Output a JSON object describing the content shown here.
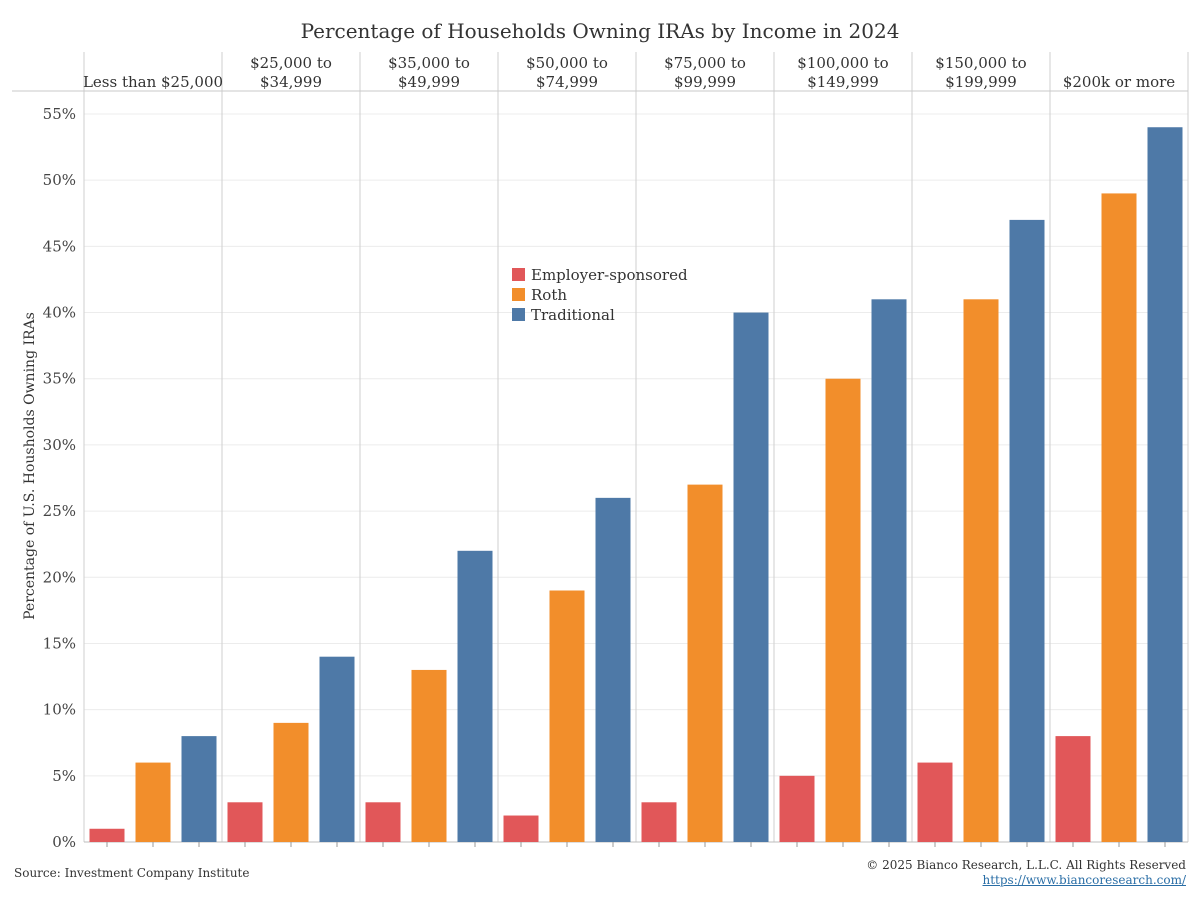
{
  "chart_data": {
    "type": "bar",
    "title": "Percentage of Households Owning IRAs by Income in 2024",
    "ylabel": "Percentage of U.S. Housholds Owning IRAs",
    "ylim": [
      0,
      55
    ],
    "y_ticks": [
      "0%",
      "5%",
      "10%",
      "15%",
      "20%",
      "25%",
      "30%",
      "35%",
      "40%",
      "45%",
      "50%",
      "55%"
    ],
    "grid": true,
    "legend_position": "center-left",
    "categories": [
      [
        "Less than $25,000"
      ],
      [
        "$25,000 to",
        "$34,999"
      ],
      [
        "$35,000 to",
        "$49,999"
      ],
      [
        "$50,000 to",
        "$74,999"
      ],
      [
        "$75,000 to",
        "$99,999"
      ],
      [
        "$100,000 to",
        "$149,999"
      ],
      [
        "$150,000 to",
        "$199,999"
      ],
      [
        "$200k or more"
      ]
    ],
    "series": [
      {
        "name": "Employer-sponsored",
        "color": "#e15759",
        "values": [
          1,
          3,
          3,
          2,
          3,
          5,
          6,
          8
        ]
      },
      {
        "name": "Roth",
        "color": "#f28e2b",
        "values": [
          6,
          9,
          13,
          19,
          27,
          35,
          41,
          49
        ]
      },
      {
        "name": "Traditional",
        "color": "#4e79a7",
        "values": [
          8,
          14,
          22,
          26,
          40,
          41,
          47,
          54
        ]
      }
    ]
  },
  "footer": {
    "source": "Source: Investment Company Institute",
    "copyright": "© 2025 Bianco Research, L.L.C. All Rights Reserved",
    "url": "https://www.biancoresearch.com/"
  }
}
